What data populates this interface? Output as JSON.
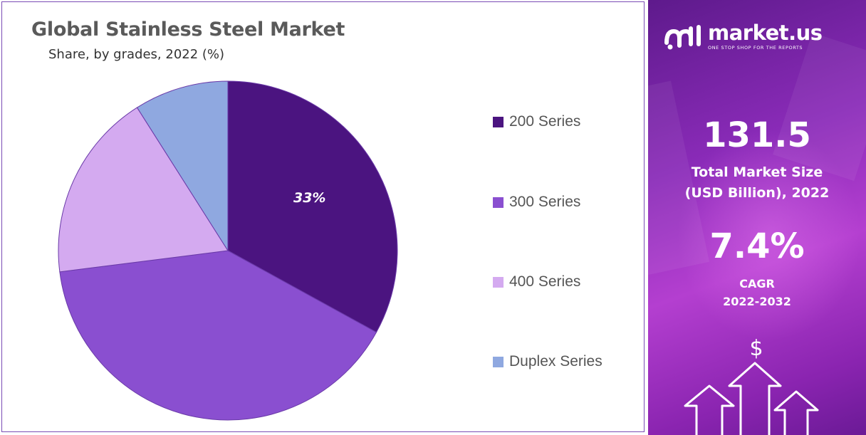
{
  "chart_data": {
    "type": "pie",
    "title": "Global Stainless Steel Market",
    "subtitle": "Share, by grades, 2022 (%)",
    "categories": [
      "200 Series",
      "300 Series",
      "400 Series",
      "Duplex Series"
    ],
    "values": [
      33,
      40,
      18,
      9
    ],
    "colors": [
      "#4b1480",
      "#8a4fd0",
      "#d4aaf0",
      "#8fa8e0"
    ],
    "data_labels": [
      "33%",
      "",
      "",
      ""
    ],
    "legend_placement": "right"
  },
  "sidebar": {
    "logo_name": "market.us",
    "logo_tagline": "ONE STOP SHOP FOR THE REPORTS",
    "market_size_value": "131.5",
    "market_size_label_line1": "Total Market Size",
    "market_size_label_line2": "(USD Billion), 2022",
    "cagr_value": "7.4%",
    "cagr_label_line1": "CAGR",
    "cagr_label_line2": "2022-2032",
    "dollar_symbol": "$",
    "icons": [
      "market-us-logo-icon",
      "growth-arrows-icon",
      "dollar-icon"
    ]
  }
}
